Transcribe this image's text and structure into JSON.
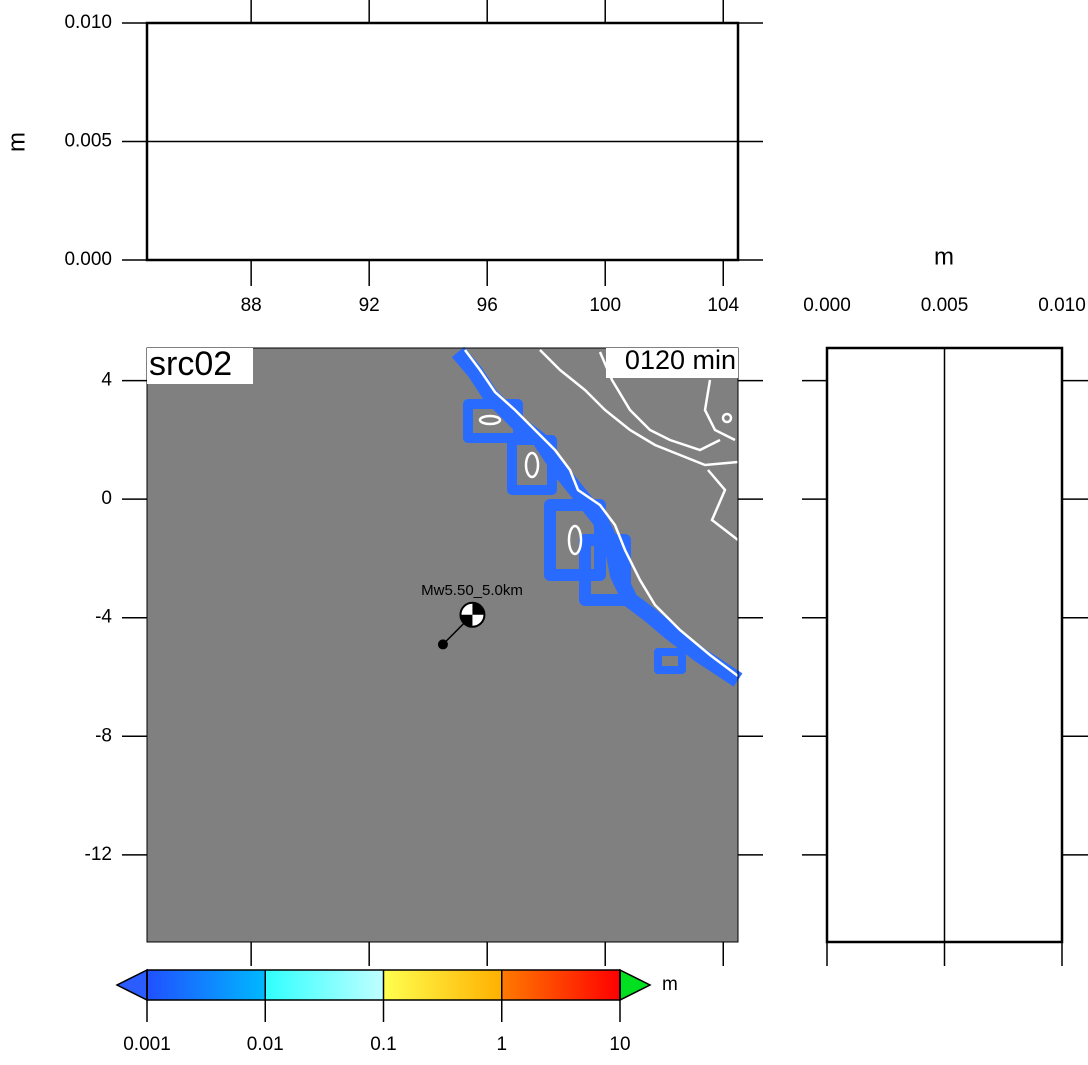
{
  "top_panel": {
    "y_label": "m",
    "ylim": [
      0,
      0.01
    ],
    "yticks": [
      {
        "value": 0,
        "label": "0.000"
      },
      {
        "value": 0.005,
        "label": "0.005"
      },
      {
        "value": 0.01,
        "label": "0.010"
      }
    ],
    "xlim": [
      84.47,
      104.5
    ],
    "xticks": [
      88,
      92,
      96,
      100,
      104
    ],
    "grid": true
  },
  "side_panel": {
    "x_label": "m",
    "xlim": [
      0,
      0.01
    ],
    "xticks": [
      {
        "value": 0,
        "label": "0.000"
      },
      {
        "value": 0.005,
        "label": "0.005"
      },
      {
        "value": 0.01,
        "label": "0.010"
      }
    ],
    "ylim": [
      -14.94,
      5.1
    ],
    "yticks": [
      4,
      0,
      -4,
      -8,
      -12
    ],
    "grid": true
  },
  "map": {
    "title": "src02",
    "time_label": "0120 min",
    "background": "#808080",
    "xlim": [
      84.47,
      104.5
    ],
    "ylim": [
      -14.94,
      5.1
    ],
    "yticks": [
      4,
      0,
      -4,
      -8,
      -12
    ],
    "source": {
      "label": "Mw5.50_5.0km",
      "epicenter": [
        94.5,
        -4.9
      ],
      "mechanism": [
        95.5,
        -3.9
      ]
    }
  },
  "colorbar": {
    "unit": "m",
    "log": true,
    "ticks": [
      0.001,
      0.01,
      0.1,
      1,
      10
    ],
    "colors": [
      [
        "#2050ff",
        "#00b8ff"
      ],
      [
        "#30ffff",
        "#c0ffff"
      ],
      [
        "#ffff50",
        "#ffb000"
      ],
      [
        "#ff7a00",
        "#ff0000"
      ]
    ],
    "under_color": "#2a5cff",
    "over_color": "#00e020"
  }
}
